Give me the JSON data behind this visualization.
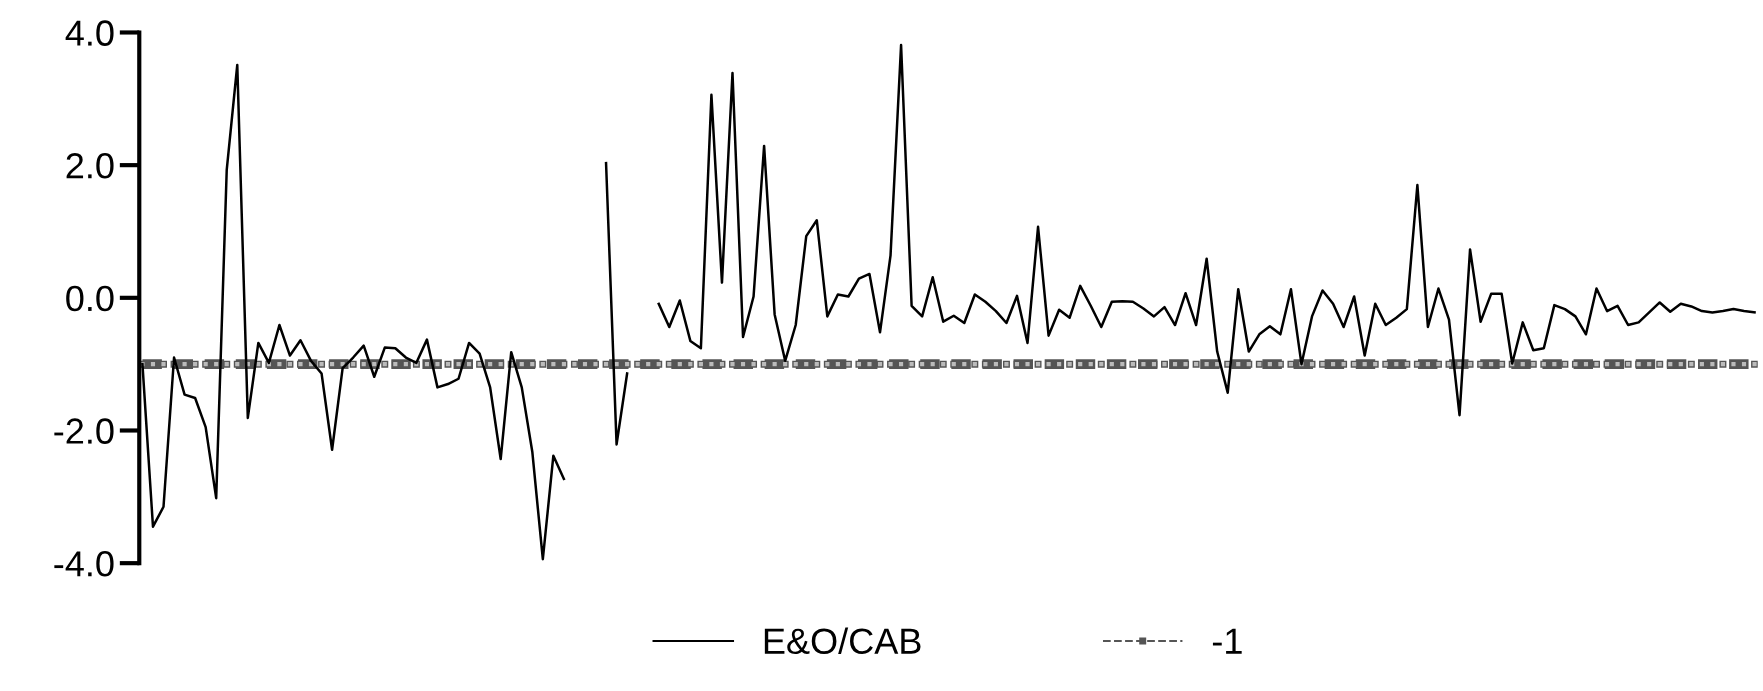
{
  "chart_data": {
    "type": "line",
    "categories": [
      null,
      null,
      null,
      null,
      null,
      null,
      null,
      null,
      null,
      null,
      null,
      null,
      null,
      null,
      null,
      null,
      null,
      null,
      null,
      null,
      null,
      null,
      null,
      null,
      null,
      null,
      null,
      null,
      null,
      null,
      null,
      null,
      null,
      null,
      null,
      null,
      null,
      null,
      null,
      null,
      null,
      null,
      null,
      null,
      null,
      null,
      null,
      null,
      null,
      null,
      null,
      null,
      null,
      null,
      null,
      null,
      null,
      null,
      null,
      null,
      null,
      null,
      null,
      null,
      null,
      null,
      null,
      null,
      null,
      null,
      null,
      null,
      null,
      null,
      null,
      null,
      null,
      null,
      null,
      null,
      null,
      null,
      null,
      null,
      null,
      null,
      null,
      null,
      null,
      null,
      null,
      null,
      null,
      null,
      null,
      null,
      null,
      null,
      null,
      null,
      null,
      null,
      null,
      null,
      null,
      null,
      null,
      null,
      null,
      null,
      null,
      null,
      null,
      null,
      null,
      null,
      null,
      null,
      null,
      null,
      null,
      null,
      null,
      null,
      null,
      null,
      null,
      null,
      null,
      null,
      null,
      null,
      null,
      null,
      null,
      null,
      null,
      null,
      null,
      null,
      null,
      null,
      null,
      null,
      null,
      null,
      null,
      null,
      null,
      null,
      null,
      null,
      null,
      null
    ],
    "series": [
      {
        "name": "E&O/CAB",
        "color": "#000000",
        "line_style": "solid",
        "marker": "none",
        "values": [
          -1.0,
          -3.45,
          -3.15,
          -0.9,
          -1.46,
          -1.51,
          -1.95,
          -3.02,
          1.93,
          3.51,
          -1.81,
          -0.68,
          -0.98,
          -0.41,
          -0.87,
          -0.64,
          -0.95,
          -1.14,
          -2.29,
          -1.06,
          -0.9,
          -0.72,
          -1.19,
          -0.75,
          -0.76,
          -0.9,
          -0.98,
          -0.63,
          -1.35,
          -1.3,
          -1.22,
          -0.68,
          -0.84,
          -1.35,
          -2.43,
          -0.82,
          -1.35,
          -2.32,
          -3.94,
          -2.38,
          -2.73,
          null,
          null,
          null,
          2.03,
          -2.21,
          -1.14,
          null,
          null,
          -0.09,
          -0.44,
          -0.04,
          -0.65,
          -0.76,
          3.06,
          0.23,
          3.39,
          -0.59,
          0.02,
          2.29,
          -0.25,
          -0.95,
          -0.41,
          0.93,
          1.17,
          -0.28,
          0.05,
          0.02,
          0.29,
          0.36,
          -0.52,
          0.64,
          3.81,
          -0.12,
          -0.28,
          0.31,
          -0.36,
          -0.27,
          -0.38,
          0.05,
          -0.06,
          -0.2,
          -0.38,
          0.03,
          -0.68,
          1.07,
          -0.57,
          -0.18,
          -0.3,
          0.18,
          -0.12,
          -0.44,
          -0.06,
          -0.05,
          -0.06,
          -0.16,
          -0.28,
          -0.14,
          -0.41,
          0.07,
          -0.41,
          0.59,
          -0.81,
          -1.43,
          0.13,
          -0.81,
          -0.55,
          -0.43,
          -0.55,
          0.13,
          -1.0,
          -0.28,
          0.11,
          -0.09,
          -0.44,
          0.02,
          -0.87,
          -0.09,
          -0.41,
          -0.3,
          -0.17,
          1.7,
          -0.44,
          0.14,
          -0.33,
          -1.77,
          0.73,
          -0.36,
          0.06,
          0.06,
          -0.99,
          -0.37,
          -0.79,
          -0.76,
          -0.11,
          -0.17,
          -0.28,
          -0.55,
          0.14,
          -0.2,
          -0.12,
          -0.41,
          -0.37,
          -0.22,
          -0.07,
          -0.21,
          -0.09,
          -0.13,
          -0.2,
          -0.22,
          -0.2,
          -0.17,
          -0.2,
          -0.22
        ]
      },
      {
        "name": "-1",
        "color": "#555555",
        "line_style": "dashed",
        "marker": "square",
        "values": [
          -1,
          -1,
          -1,
          -1,
          -1,
          -1,
          -1,
          -1,
          -1,
          -1,
          -1,
          -1,
          -1,
          -1,
          -1,
          -1,
          -1,
          -1,
          -1,
          -1,
          -1,
          -1,
          -1,
          -1,
          -1,
          -1,
          -1,
          -1,
          -1,
          -1,
          -1,
          -1,
          -1,
          -1,
          -1,
          -1,
          -1,
          -1,
          -1,
          -1,
          -1,
          -1,
          -1,
          -1,
          -1,
          -1,
          -1,
          -1,
          -1,
          -1,
          -1,
          -1,
          -1,
          -1,
          -1,
          -1,
          -1,
          -1,
          -1,
          -1,
          -1,
          -1,
          -1,
          -1,
          -1,
          -1,
          -1,
          -1,
          -1,
          -1,
          -1,
          -1,
          -1,
          -1,
          -1,
          -1,
          -1,
          -1,
          -1,
          -1,
          -1,
          -1,
          -1,
          -1,
          -1,
          -1,
          -1,
          -1,
          -1,
          -1,
          -1,
          -1,
          -1,
          -1,
          -1,
          -1,
          -1,
          -1,
          -1,
          -1,
          -1,
          -1,
          -1,
          -1,
          -1,
          -1,
          -1,
          -1,
          -1,
          -1,
          -1,
          -1,
          -1,
          -1,
          -1,
          -1,
          -1,
          -1,
          -1,
          -1,
          -1,
          -1,
          -1,
          -1,
          -1,
          -1,
          -1,
          -1,
          -1,
          -1,
          -1,
          -1,
          -1,
          -1,
          -1,
          -1,
          -1,
          -1,
          -1,
          -1,
          -1,
          -1,
          -1,
          -1,
          -1,
          -1,
          -1,
          -1,
          -1,
          -1,
          -1,
          -1,
          -1,
          -1
        ]
      }
    ],
    "ylim": [
      -4.0,
      4.0
    ],
    "yticks": [
      {
        "value": -4,
        "label": "-4.0"
      },
      {
        "value": -2,
        "label": "-2.0"
      },
      {
        "value": 0,
        "label": "0.0"
      },
      {
        "value": 2,
        "label": "2.0"
      },
      {
        "value": 4,
        "label": "4.0"
      }
    ],
    "tick_labels": "y",
    "grid": false,
    "legend": "bottom"
  }
}
